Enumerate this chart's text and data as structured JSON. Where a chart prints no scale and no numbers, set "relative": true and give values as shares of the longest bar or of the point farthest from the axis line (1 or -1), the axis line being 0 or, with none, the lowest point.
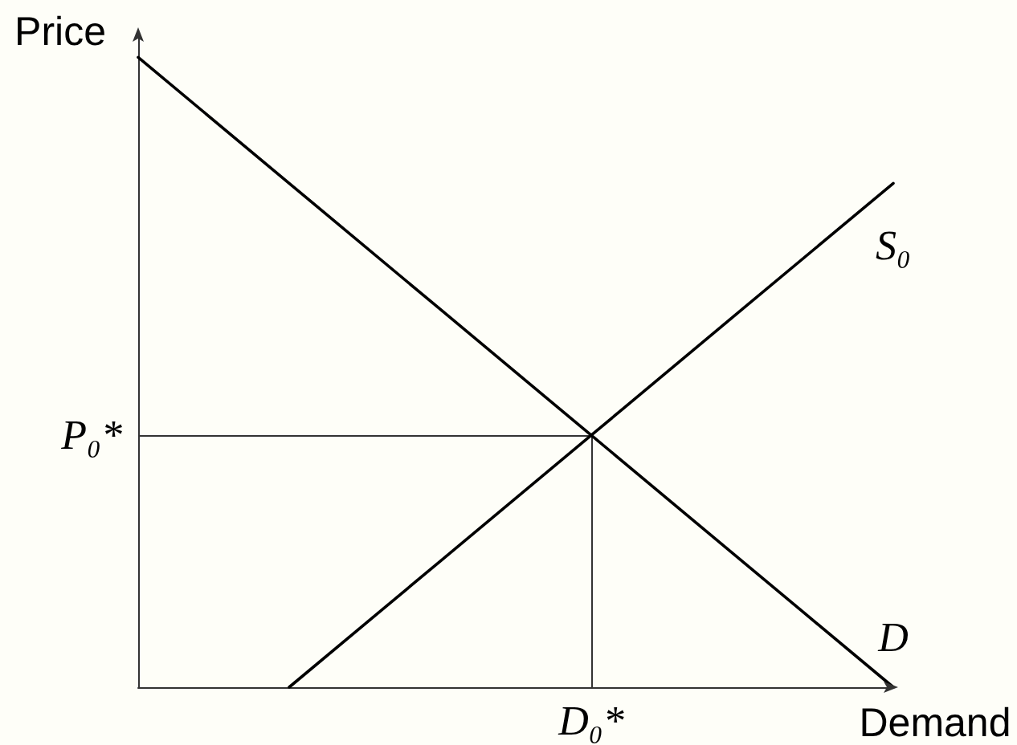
{
  "chart_data": {
    "type": "line",
    "relative": true,
    "xlabel": "Demand",
    "ylabel": "Price",
    "categories": [
      null,
      null,
      null,
      null,
      null,
      null
    ],
    "series": [
      {
        "name": "D",
        "color": "#000000",
        "values": [
          1,
          0.8,
          0.6,
          0.4,
          0.2,
          0
        ]
      },
      {
        "name": "S₀",
        "color": "#000000",
        "values": [
          null,
          0,
          0.2,
          0.4,
          0.6,
          0.8
        ]
      }
    ],
    "ref_lines": [
      {
        "axis": "y",
        "value": 0.4,
        "label": "P₀*",
        "color": "#333333"
      },
      {
        "axis": "x",
        "label": "D₀*",
        "color": "#333333"
      }
    ],
    "marker": "none",
    "grid": false,
    "legend": false
  }
}
